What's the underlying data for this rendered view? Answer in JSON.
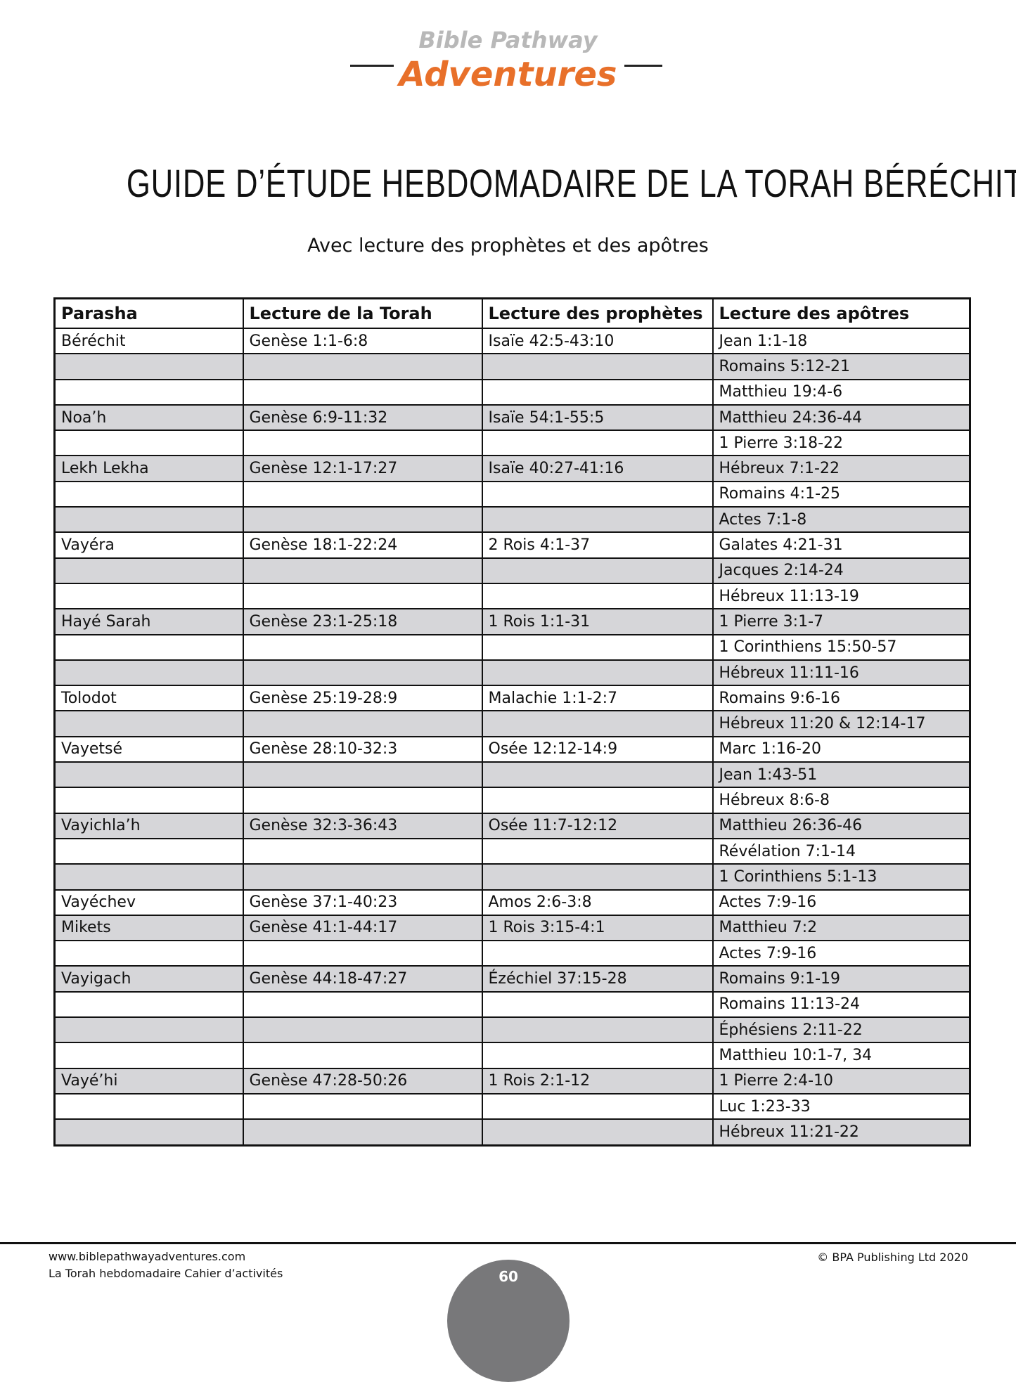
{
  "header": {
    "logo_top": "Bible Pathway",
    "logo_bottom": "Adventures"
  },
  "title": "GUIDE D’ÉTUDE HEBDOMADAIRE DE LA TORAH BÉRÉCHIT",
  "subtitle": "Avec lecture des prophètes et des apôtres",
  "table": {
    "header": [
      "Parasha",
      "Lecture de la Torah",
      "Lecture des prophètes",
      "Lecture des apôtres"
    ],
    "rows": [
      {
        "parasha": "Béréchit",
        "torah": "Genèse 1:1-6:8",
        "prophets": "Isaïe 42:5-43:10",
        "apostles": "Jean 1:1-18"
      },
      {
        "apostles": "Romains 5:12-21"
      },
      {
        "apostles": "Matthieu 19:4-6"
      },
      {
        "parasha": "Noa’h",
        "torah": "Genèse 6:9-11:32",
        "prophets": "Isaïe 54:1-55:5",
        "apostles": "Matthieu 24:36-44"
      },
      {
        "apostles": "1 Pierre 3:18-22"
      },
      {
        "parasha": "Lekh Lekha",
        "torah": "Genèse 12:1-17:27",
        "prophets": "Isaïe 40:27-41:16",
        "apostles": "Hébreux 7:1-22"
      },
      {
        "apostles": "Romains 4:1-25"
      },
      {
        "apostles": "Actes 7:1-8"
      },
      {
        "parasha": "Vayéra",
        "torah": "Genèse 18:1-22:24",
        "prophets": "2 Rois 4:1-37",
        "apostles": "Galates 4:21-31"
      },
      {
        "apostles": "Jacques 2:14-24"
      },
      {
        "apostles": "Hébreux 11:13-19"
      },
      {
        "parasha": "Hayé Sarah",
        "torah": "Genèse 23:1-25:18",
        "prophets": "1 Rois 1:1-31",
        "apostles": "1 Pierre 3:1-7"
      },
      {
        "apostles": "1 Corinthiens 15:50-57"
      },
      {
        "apostles": "Hébreux 11:11-16"
      },
      {
        "parasha": "Tolodot",
        "torah": "Genèse 25:19-28:9",
        "prophets": "Malachie 1:1-2:7",
        "apostles": "Romains 9:6-16"
      },
      {
        "apostles": "Hébreux 11:20 & 12:14-17"
      },
      {
        "parasha": "Vayetsé",
        "torah": "Genèse 28:10-32:3",
        "prophets": "Osée 12:12-14:9",
        "apostles": "Marc 1:16-20"
      },
      {
        "apostles": "Jean 1:43-51"
      },
      {
        "apostles": "Hébreux 8:6-8"
      },
      {
        "parasha": "Vayichla’h",
        "torah": "Genèse 32:3-36:43",
        "prophets": "Osée 11:7-12:12",
        "apostles": "Matthieu 26:36-46"
      },
      {
        "apostles": "Révélation 7:1-14"
      },
      {
        "apostles": "1 Corinthiens 5:1-13"
      },
      {
        "parasha": "Vayéchev",
        "torah": "Genèse 37:1-40:23",
        "prophets": "Amos 2:6-3:8",
        "apostles": "Actes 7:9-16"
      },
      {
        "parasha": "Mikets",
        "torah": "Genèse 41:1-44:17",
        "prophets": "1 Rois 3:15-4:1",
        "apostles": "Matthieu 7:2"
      },
      {
        "apostles": "Actes 7:9-16"
      },
      {
        "parasha": "Vayigach",
        "torah": "Genèse 44:18-47:27",
        "prophets": "Ézéchiel 37:15-28",
        "apostles": "Romains 9:1-19"
      },
      {
        "apostles": "Romains 11:13-24"
      },
      {
        "apostles": "Éphésiens 2:11-22"
      },
      {
        "apostles": "Matthieu 10:1-7, 34"
      },
      {
        "parasha": "Vayé’hi",
        "torah": "Genèse 47:28-50:26",
        "prophets": "1 Rois 2:1-12",
        "apostles": "1 Pierre 2:4-10"
      },
      {
        "apostles": "Luc 1:23-33"
      },
      {
        "apostles": "Hébreux 11:21-22"
      }
    ]
  },
  "footer": {
    "website": "www.biblepathwayadventures.com",
    "book": "La Torah hebdomadaire Cahier d’activités",
    "copyright": "© BPA Publishing Ltd 2020",
    "page": "60"
  }
}
